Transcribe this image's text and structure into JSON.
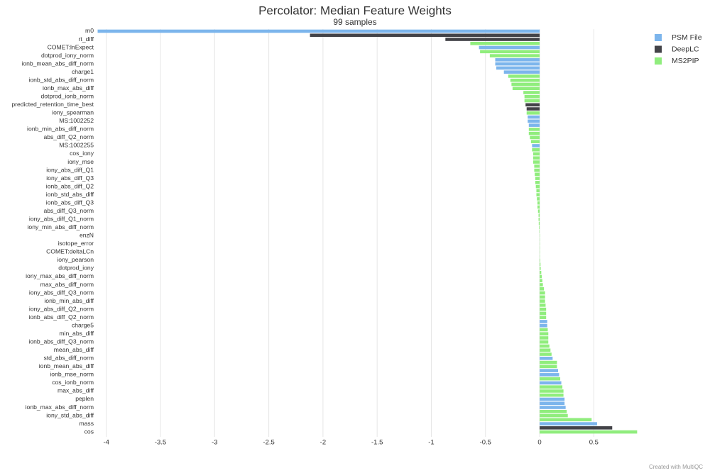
{
  "chart_data": {
    "type": "hbar",
    "title": "Percolator: Median Feature Weights",
    "subtitle": "99 samples",
    "footer": "Created with MultiQC",
    "categories": [
      "m0",
      null,
      "rt_diff",
      null,
      "COMET:lnExpect",
      null,
      "dotprod_iony_norm",
      null,
      "ionb_mean_abs_diff_norm",
      null,
      "charge1",
      null,
      "ionb_std_abs_diff_norm",
      null,
      "ionb_max_abs_diff",
      null,
      "dotprod_ionb_norm",
      null,
      "predicted_retention_time_best",
      null,
      "iony_spearman",
      null,
      "MS:1002252",
      null,
      "ionb_min_abs_diff_norm",
      null,
      "abs_diff_Q2_norm",
      null,
      "MS:1002255",
      null,
      "cos_iony",
      null,
      "iony_mse",
      null,
      "iony_abs_diff_Q1",
      null,
      "iony_abs_diff_Q3",
      null,
      "ionb_abs_diff_Q2",
      null,
      "ionb_std_abs_diff",
      null,
      "ionb_abs_diff_Q3",
      null,
      "abs_diff_Q3_norm",
      null,
      "iony_abs_diff_Q1_norm",
      null,
      "iony_min_abs_diff_norm",
      null,
      "enzN",
      null,
      "isotope_error",
      null,
      "COMET:deltaLCn",
      null,
      "iony_pearson",
      null,
      "dotprod_iony",
      null,
      "iony_max_abs_diff_norm",
      null,
      "max_abs_diff_norm",
      null,
      "iony_abs_diff_Q3_norm",
      null,
      "ionb_min_abs_diff",
      null,
      "iony_abs_diff_Q2_norm",
      null,
      "ionb_abs_diff_Q2_norm",
      null,
      "charge5",
      null,
      "min_abs_diff",
      null,
      "ionb_abs_diff_Q3_norm",
      null,
      "mean_abs_diff",
      null,
      "std_abs_diff_norm",
      null,
      "ionb_mean_abs_diff",
      null,
      "ionb_mse_norm",
      null,
      "cos_ionb_norm",
      null,
      "max_abs_diff",
      null,
      "peplen",
      null,
      "ionb_max_abs_diff_norm",
      null,
      "iony_std_abs_diff",
      null,
      "mass",
      null,
      "cos"
    ],
    "series": [
      {
        "name": "PSM File",
        "color": "#7cb5ec",
        "values": [
          -4.08,
          null,
          null,
          null,
          -0.56,
          null,
          null,
          -0.41,
          -0.41,
          -0.4,
          -0.33,
          null,
          null,
          null,
          null,
          null,
          null,
          null,
          null,
          null,
          null,
          -0.11,
          -0.11,
          -0.1,
          null,
          null,
          null,
          null,
          -0.07,
          null,
          null,
          null,
          null,
          null,
          null,
          null,
          null,
          null,
          null,
          null,
          null,
          null,
          null,
          null,
          null,
          null,
          null,
          null,
          null,
          null,
          null,
          null,
          null,
          null,
          null,
          null,
          null,
          null,
          null,
          null,
          null,
          null,
          null,
          null,
          null,
          null,
          null,
          null,
          null,
          null,
          null,
          0.07,
          0.07,
          null,
          null,
          null,
          null,
          null,
          null,
          null,
          0.12,
          null,
          null,
          0.17,
          0.18,
          null,
          0.2,
          null,
          null,
          null,
          0.23,
          0.23,
          0.24,
          null,
          null,
          null,
          0.53,
          null,
          null
        ]
      },
      {
        "name": "DeepLC",
        "color": "#434348",
        "values": [
          null,
          -2.12,
          -0.87,
          null,
          null,
          null,
          null,
          null,
          null,
          null,
          null,
          null,
          null,
          null,
          null,
          null,
          null,
          null,
          -0.13,
          -0.12,
          null,
          null,
          null,
          null,
          null,
          null,
          null,
          null,
          null,
          null,
          null,
          null,
          null,
          null,
          null,
          null,
          null,
          null,
          null,
          null,
          null,
          null,
          null,
          null,
          null,
          null,
          null,
          null,
          null,
          null,
          null,
          null,
          null,
          null,
          null,
          null,
          null,
          null,
          null,
          null,
          null,
          null,
          null,
          null,
          null,
          null,
          null,
          null,
          null,
          null,
          null,
          null,
          null,
          null,
          null,
          null,
          null,
          null,
          null,
          null,
          null,
          null,
          null,
          null,
          null,
          null,
          null,
          null,
          null,
          null,
          null,
          null,
          null,
          null,
          null,
          null,
          null,
          0.67,
          null
        ]
      },
      {
        "name": "MS2PIP",
        "color": "#90ed7d",
        "values": [
          null,
          null,
          null,
          -0.64,
          null,
          -0.55,
          -0.46,
          null,
          null,
          null,
          null,
          -0.29,
          -0.27,
          -0.26,
          -0.25,
          -0.15,
          -0.14,
          -0.14,
          null,
          null,
          -0.12,
          null,
          null,
          null,
          -0.1,
          -0.1,
          -0.09,
          -0.08,
          null,
          -0.07,
          -0.06,
          -0.06,
          -0.06,
          -0.05,
          -0.05,
          -0.045,
          -0.04,
          -0.04,
          -0.035,
          -0.03,
          -0.03,
          -0.025,
          -0.02,
          -0.02,
          -0.015,
          -0.01,
          -0.01,
          -0.008,
          -0.005,
          -0.003,
          0,
          0,
          0,
          0,
          0,
          0.002,
          0.005,
          0.008,
          0.01,
          0.015,
          0.02,
          0.025,
          0.03,
          0.04,
          0.05,
          0.05,
          0.05,
          0.055,
          0.06,
          0.06,
          0.06,
          null,
          null,
          0.075,
          0.08,
          0.08,
          0.08,
          0.09,
          0.1,
          0.11,
          null,
          0.16,
          0.16,
          null,
          null,
          0.19,
          null,
          0.21,
          0.22,
          0.22,
          null,
          null,
          null,
          0.25,
          0.26,
          0.48,
          null,
          null,
          0.9
        ]
      }
    ],
    "xlim": [
      -4.09,
      0.95
    ],
    "xticks": [
      -4,
      -3.5,
      -3,
      -2.5,
      -2,
      -1.5,
      -1,
      -0.5,
      0,
      0.5
    ],
    "grid": true,
    "legend": "top-right"
  }
}
